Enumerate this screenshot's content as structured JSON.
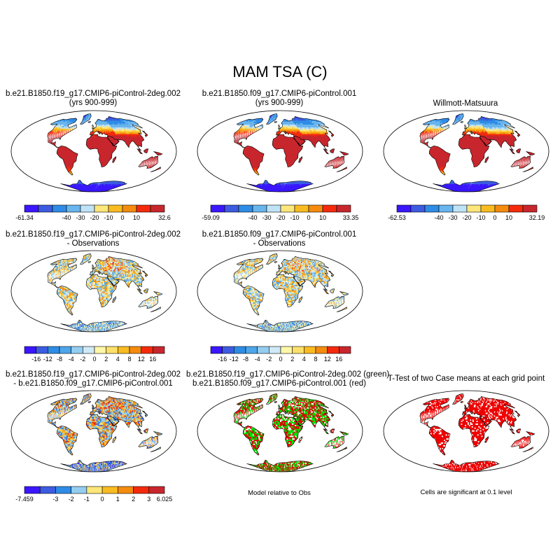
{
  "figure": {
    "title": "MAM TSA (C)",
    "row1": {
      "panels": [
        {
          "line1": "b.e21.B1850.f19_g17.CMIP6-piControl-2deg.002",
          "line2": "(yrs 900-999)",
          "colorbar": {
            "labels": [
              "-61.34",
              "-40",
              "-30",
              "-20",
              "-10",
              "0",
              "10",
              "32.6"
            ]
          }
        },
        {
          "line1": "b.e21.B1850.f09_g17.CMIP6-piControl.001",
          "line2": "(yrs 900-999)",
          "colorbar": {
            "labels": [
              "-59.09",
              "-40",
              "-30",
              "-20",
              "-10",
              "0",
              "10",
              "33.35"
            ]
          }
        },
        {
          "line1": "Willmott-Matsuura",
          "line2": "",
          "colorbar": {
            "labels": [
              "-62.53",
              "-40",
              "-30",
              "-20",
              "-10",
              "0",
              "10",
              "32.19"
            ]
          }
        }
      ]
    },
    "row2": {
      "panels": [
        {
          "line1": "b.e21.B1850.f19_g17.CMIP6-piControl-2deg.002",
          "line2": "- Observations",
          "colorbar": {
            "labels": [
              "-16",
              "-12",
              "-8",
              "-4",
              "-2",
              "0",
              "2",
              "4",
              "8",
              "12",
              "16"
            ]
          }
        },
        {
          "line1": "b.e21.B1850.f09_g17.CMIP6-piControl.001",
          "line2": "- Observations",
          "colorbar": {
            "labels": [
              "-16",
              "-12",
              "-8",
              "-4",
              "-2",
              "0",
              "2",
              "4",
              "8",
              "12",
              "16"
            ]
          }
        }
      ]
    },
    "row3": {
      "panels": [
        {
          "line1": "b.e21.B1850.f19_g17.CMIP6-piControl-2deg.002",
          "line2": "- b.e21.B1850.f09_g17.CMIP6-piControl.001",
          "colorbar": {
            "labels": [
              "-7.459",
              "-3",
              "-2",
              "-1",
              "0",
              "1",
              "2",
              "3",
              "6.025"
            ]
          }
        },
        {
          "line1": "b.e21.B1850.f19_g17.CMIP6-piControl-2deg.002 (green)",
          "line2": "b.e21.B1850.f09_g17.CMIP6-piControl.001 (red)",
          "caption": "Model relative to Obs"
        },
        {
          "line1": "T-Test of two Case means at each grid point",
          "line2": "",
          "caption": "Cells are significant at 0.1 level"
        }
      ]
    }
  },
  "chart_data": [
    {
      "type": "heatmap",
      "title": "b.e21.B1850.f19_g17.CMIP6-piControl-2deg.002 (yrs 900-999)",
      "variable": "MAM TSA (C)",
      "min": -61.34,
      "max": 32.6,
      "colorbar_ticks": [
        -40,
        -30,
        -20,
        -10,
        0,
        10
      ],
      "colors": [
        "#3a17ff",
        "#3c5be0",
        "#2f8ce6",
        "#69b5ee",
        "#bfe3f6",
        "#fde67a",
        "#f9bb22",
        "#f58b0f",
        "#f42a0d",
        "#c8262d"
      ]
    },
    {
      "type": "heatmap",
      "title": "b.e21.B1850.f09_g17.CMIP6-piControl.001 (yrs 900-999)",
      "variable": "MAM TSA (C)",
      "min": -59.09,
      "max": 33.35,
      "colorbar_ticks": [
        -40,
        -30,
        -20,
        -10,
        0,
        10
      ],
      "colors": [
        "#3a17ff",
        "#3c5be0",
        "#2f8ce6",
        "#69b5ee",
        "#bfe3f6",
        "#fde67a",
        "#f9bb22",
        "#f58b0f",
        "#f42a0d",
        "#c8262d"
      ]
    },
    {
      "type": "heatmap",
      "title": "Willmott-Matsuura",
      "variable": "MAM TSA (C)",
      "min": -62.53,
      "max": 32.19,
      "colorbar_ticks": [
        -40,
        -30,
        -20,
        -10,
        0,
        10
      ],
      "colors": [
        "#3a17ff",
        "#3c5be0",
        "#2f8ce6",
        "#69b5ee",
        "#bfe3f6",
        "#fde67a",
        "#f9bb22",
        "#f58b0f",
        "#f42a0d",
        "#c8262d"
      ]
    },
    {
      "type": "heatmap",
      "title": "b.e21.B1850.f19_g17.CMIP6-piControl-2deg.002 - Observations",
      "colorbar_ticks": [
        -16,
        -12,
        -8,
        -4,
        -2,
        0,
        2,
        4,
        8,
        12,
        16
      ],
      "colors": [
        "#3a17ff",
        "#3c5be0",
        "#2f8ce6",
        "#4da6ea",
        "#94cdf0",
        "#cfe9f7",
        "#fff7a8",
        "#fde06a",
        "#f9bb22",
        "#f58b0f",
        "#f42a0d",
        "#c8262d"
      ]
    },
    {
      "type": "heatmap",
      "title": "b.e21.B1850.f09_g17.CMIP6-piControl.001 - Observations",
      "colorbar_ticks": [
        -16,
        -12,
        -8,
        -4,
        -2,
        0,
        2,
        4,
        8,
        12,
        16
      ],
      "colors": [
        "#3a17ff",
        "#3c5be0",
        "#2f8ce6",
        "#4da6ea",
        "#94cdf0",
        "#cfe9f7",
        "#fff7a8",
        "#fde06a",
        "#f9bb22",
        "#f58b0f",
        "#f42a0d",
        "#c8262d"
      ]
    },
    {
      "type": "heatmap",
      "title": "b.e21.B1850.f19_g17.CMIP6-piControl-2deg.002 - b.e21.B1850.f09_g17.CMIP6-piControl.001",
      "min": -7.459,
      "max": 6.025,
      "colorbar_ticks": [
        -3,
        -2,
        -1,
        0,
        1,
        2,
        3
      ],
      "colors": [
        "#3a17ff",
        "#3c5be0",
        "#2f8ce6",
        "#94cdf0",
        "#fde67a",
        "#f9bb22",
        "#f58b0f",
        "#f42a0d",
        "#c8262d"
      ]
    },
    {
      "type": "heatmap",
      "title": "Model relative to Obs",
      "legend": [
        "green: b.e21.B1850.f19_g17.CMIP6-piControl-2deg.002",
        "red: b.e21.B1850.f09_g17.CMIP6-piControl.001"
      ]
    },
    {
      "type": "heatmap",
      "title": "T-Test of two Case means at each grid point",
      "note": "Cells are significant at 0.1 level"
    }
  ]
}
